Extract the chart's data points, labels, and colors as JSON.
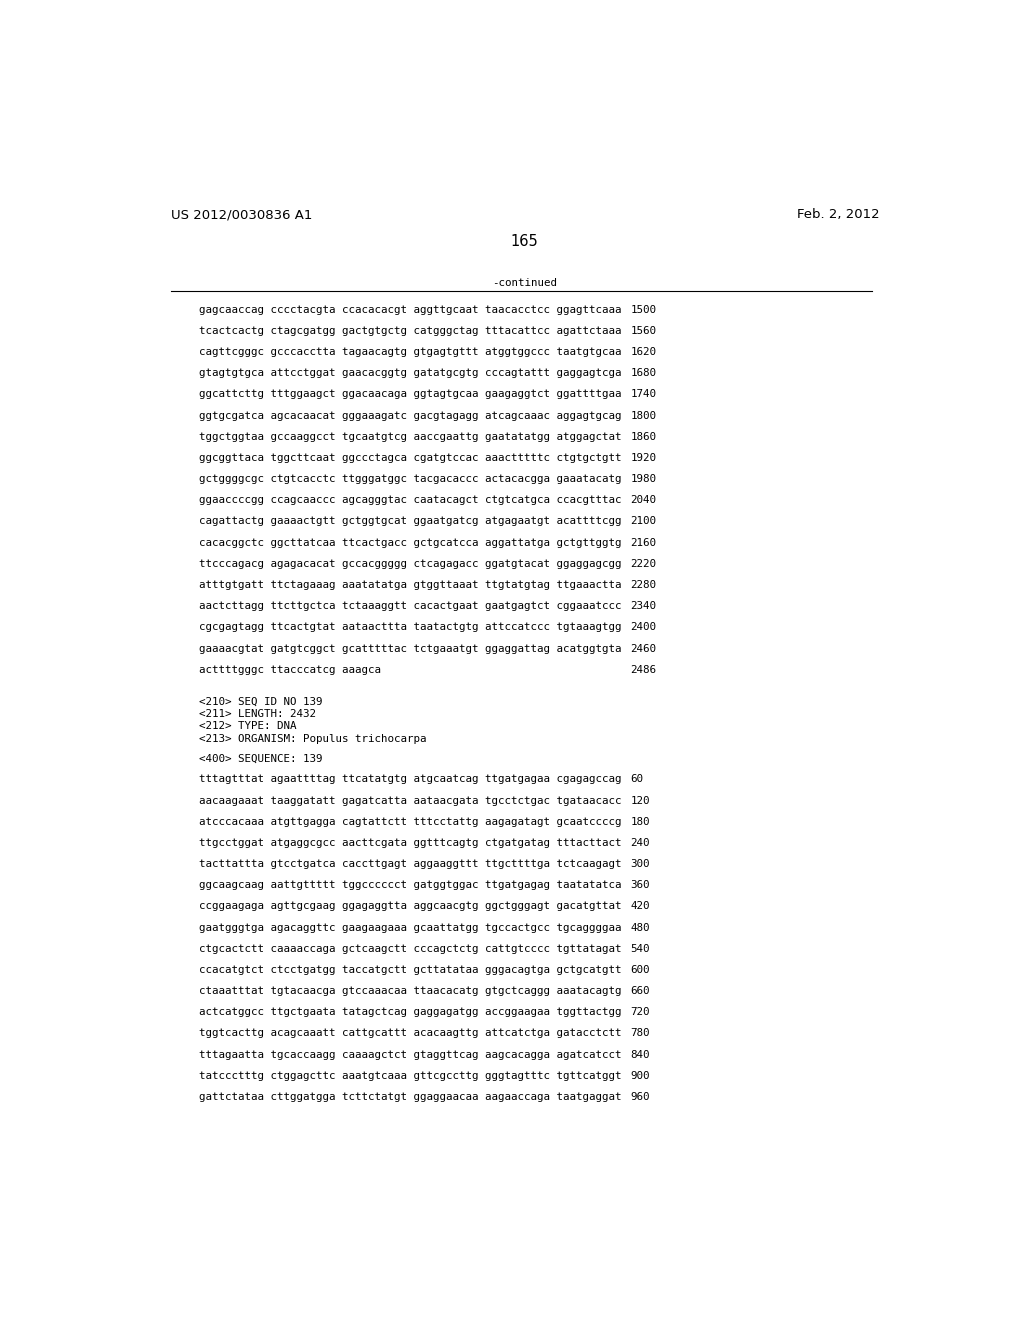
{
  "header_left": "US 2012/0030836 A1",
  "header_right": "Feb. 2, 2012",
  "page_number": "165",
  "continued_label": "-continued",
  "background_color": "#ffffff",
  "text_color": "#000000",
  "mono_font_size": 7.8,
  "header_font_size": 9.5,
  "page_num_font_size": 10.5,
  "sequence_lines_continued": [
    [
      "gagcaaccag cccctacgta ccacacacgt aggttgcaat taacacctcc ggagttcaaa",
      "1500"
    ],
    [
      "tcactcactg ctagcgatgg gactgtgctg catgggctag tttacattcc agattctaaa",
      "1560"
    ],
    [
      "cagttcgggc gcccacctta tagaacagtg gtgagtgttt atggtggccc taatgtgcaa",
      "1620"
    ],
    [
      "gtagtgtgca attcctggat gaacacggtg gatatgcgtg cccagtattt gaggagtcga",
      "1680"
    ],
    [
      "ggcattcttg tttggaagct ggacaacaga ggtagtgcaa gaagaggtct ggattttgaa",
      "1740"
    ],
    [
      "ggtgcgatca agcacaacat gggaaagatc gacgtagagg atcagcaaac aggagtgcag",
      "1800"
    ],
    [
      "tggctggtaa gccaaggcct tgcaatgtcg aaccgaattg gaatatatgg atggagctat",
      "1860"
    ],
    [
      "ggcggttaca tggcttcaat ggccctagca cgatgtccac aaactttttc ctgtgctgtt",
      "1920"
    ],
    [
      "gctggggcgc ctgtcacctc ttgggatggc tacgacaccc actacacgga gaaatacatg",
      "1980"
    ],
    [
      "ggaaccccgg ccagcaaccc agcagggtac caatacagct ctgtcatgca ccacgtttac",
      "2040"
    ],
    [
      "cagattactg gaaaactgtt gctggtgcat ggaatgatcg atgagaatgt acattttcgg",
      "2100"
    ],
    [
      "cacacggctc ggcttatcaa ttcactgacc gctgcatcca aggattatga gctgttggtg",
      "2160"
    ],
    [
      "ttcccagacg agagacacat gccacggggg ctcagagacc ggatgtacat ggaggagcgg",
      "2220"
    ],
    [
      "atttgtgatt ttctagaaag aaatatatga gtggttaaat ttgtatgtag ttgaaactta",
      "2280"
    ],
    [
      "aactcttagg ttcttgctca tctaaaggtt cacactgaat gaatgagtct cggaaatccc",
      "2340"
    ],
    [
      "cgcgagtagg ttcactgtat aataacttta taatactgtg attccatccc tgtaaagtgg",
      "2400"
    ],
    [
      "gaaaacgtat gatgtcggct gcatttttac tctgaaatgt ggaggattag acatggtgta",
      "2460"
    ],
    [
      "acttttgggc ttacccatcg aaagca",
      "2486"
    ]
  ],
  "seq_info_lines": [
    "<210> SEQ ID NO 139",
    "<211> LENGTH: 2432",
    "<212> TYPE: DNA",
    "<213> ORGANISM: Populus trichocarpa"
  ],
  "seq400_label": "<400> SEQUENCE: 139",
  "sequence_lines_new": [
    [
      "tttagtttat agaattttag ttcatatgtg atgcaatcag ttgatgagaa cgagagccag",
      "60"
    ],
    [
      "aacaagaaat taaggatatt gagatcatta aataacgata tgcctctgac tgataacacc",
      "120"
    ],
    [
      "atcccacaaa atgttgagga cagtattctt tttcctattg aagagatagt gcaatccccg",
      "180"
    ],
    [
      "ttgcctggat atgaggcgcc aacttcgata ggtttcagtg ctgatgatag tttacttact",
      "240"
    ],
    [
      "tacttattta gtcctgatca caccttgagt aggaaggttt ttgcttttga tctcaagagt",
      "300"
    ],
    [
      "ggcaagcaag aattgttttt tggcccccct gatggtggac ttgatgagag taatatatca",
      "360"
    ],
    [
      "ccggaagaga agttgcgaag ggagaggtta aggcaacgtg ggctgggagt gacatgttat",
      "420"
    ],
    [
      "gaatgggtga agacaggttc gaagaagaaa gcaattatgg tgccactgcc tgcaggggaa",
      "480"
    ],
    [
      "ctgcactctt caaaaccaga gctcaagctt cccagctctg cattgtcccc tgttatagat",
      "540"
    ],
    [
      "ccacatgtct ctcctgatgg taccatgctt gcttatataa gggacagtga gctgcatgtt",
      "600"
    ],
    [
      "ctaaatttat tgtacaacga gtccaaacaa ttaacacatg gtgctcaggg aaatacagtg",
      "660"
    ],
    [
      "actcatggcc ttgctgaata tatagctcag gaggagatgg accggaagaa tggttactgg",
      "720"
    ],
    [
      "tggtcacttg acagcaaatt cattgcattt acacaagttg attcatctga gatacctctt",
      "780"
    ],
    [
      "tttagaatta tgcaccaagg caaaagctct gtaggttcag aagcacagga agatcatcct",
      "840"
    ],
    [
      "tatccctttg ctggagcttc aaatgtcaaa gttcgccttg gggtagtttc tgttcatggt",
      "900"
    ],
    [
      "gattctataa cttggatgga tcttctatgt ggaggaacaa aagaaccaga taatgaggat",
      "960"
    ]
  ]
}
